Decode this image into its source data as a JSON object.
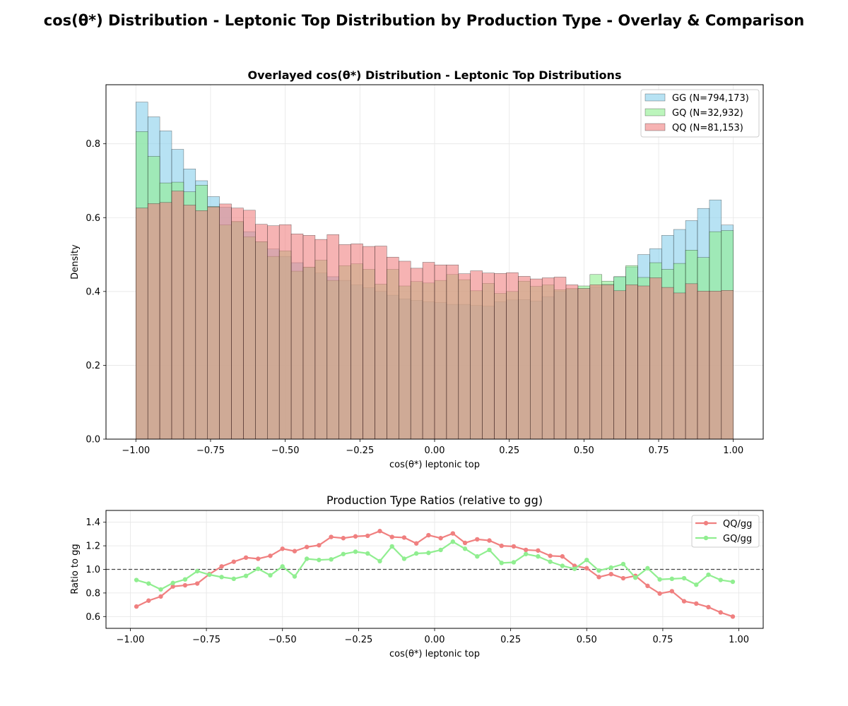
{
  "figure": {
    "suptitle": "cos(θ*) Distribution - Leptonic Top Distribution by Production Type - Overlay & Comparison"
  },
  "chart_data": [
    {
      "type": "histogram",
      "title": "Overlayed cos(θ*) Distribution - Leptonic Top Distributions",
      "xlabel": "cos(θ*) leptonic top",
      "ylabel": "Density",
      "xlim": [
        -1.1,
        1.1
      ],
      "ylim": [
        0,
        0.96
      ],
      "xticks": [
        -1.0,
        -0.75,
        -0.5,
        -0.25,
        0.0,
        0.25,
        0.5,
        0.75,
        1.0
      ],
      "xtick_labels": [
        "−1.00",
        "−0.75",
        "−0.50",
        "−0.25",
        "0.00",
        "0.25",
        "0.50",
        "0.75",
        "1.00"
      ],
      "yticks": [
        0.0,
        0.2,
        0.4,
        0.6,
        0.8
      ],
      "ytick_labels": [
        "0.0",
        "0.2",
        "0.4",
        "0.6",
        "0.8"
      ],
      "grid": true,
      "legend_position": "top-right",
      "bin_edges_range": [
        -1.0,
        1.0
      ],
      "n_bins": 50,
      "series": [
        {
          "name": "GG (N=794,173)",
          "color": "#87CEEB",
          "values": [
            0.913,
            0.873,
            0.835,
            0.785,
            0.732,
            0.7,
            0.657,
            0.628,
            0.588,
            0.562,
            0.535,
            0.515,
            0.495,
            0.478,
            0.465,
            0.45,
            0.44,
            0.43,
            0.418,
            0.41,
            0.4,
            0.39,
            0.38,
            0.376,
            0.372,
            0.37,
            0.365,
            0.365,
            0.362,
            0.36,
            0.372,
            0.377,
            0.378,
            0.374,
            0.386,
            0.4,
            0.406,
            0.408,
            0.412,
            0.42,
            0.44,
            0.466,
            0.5,
            0.516,
            0.552,
            0.568,
            0.592,
            0.625,
            0.648,
            0.58
          ]
        },
        {
          "name": "GQ (N=32,932)",
          "color": "#90EE90",
          "values": [
            0.833,
            0.766,
            0.694,
            0.696,
            0.67,
            0.688,
            0.63,
            0.58,
            0.59,
            0.548,
            0.535,
            0.495,
            0.51,
            0.455,
            0.466,
            0.485,
            0.43,
            0.47,
            0.475,
            0.46,
            0.42,
            0.46,
            0.415,
            0.427,
            0.423,
            0.43,
            0.446,
            0.432,
            0.402,
            0.422,
            0.395,
            0.4,
            0.428,
            0.414,
            0.418,
            0.405,
            0.408,
            0.415,
            0.446,
            0.428,
            0.44,
            0.47,
            0.438,
            0.478,
            0.46,
            0.476,
            0.512,
            0.492,
            0.562,
            0.565
          ]
        },
        {
          "name": "QQ (N=81,153)",
          "color": "#F08080",
          "values": [
            0.626,
            0.638,
            0.641,
            0.672,
            0.634,
            0.619,
            0.629,
            0.637,
            0.626,
            0.62,
            0.582,
            0.578,
            0.581,
            0.556,
            0.552,
            0.541,
            0.554,
            0.527,
            0.529,
            0.522,
            0.523,
            0.493,
            0.482,
            0.463,
            0.479,
            0.472,
            0.472,
            0.448,
            0.456,
            0.45,
            0.449,
            0.451,
            0.441,
            0.434,
            0.437,
            0.439,
            0.418,
            0.408,
            0.418,
            0.418,
            0.402,
            0.418,
            0.415,
            0.437,
            0.411,
            0.396,
            0.421,
            0.401,
            0.401,
            0.403
          ]
        }
      ]
    },
    {
      "type": "line",
      "title": "Production Type Ratios (relative to gg)",
      "xlabel": "cos(θ*) leptonic top",
      "ylabel": "Ratio to gg",
      "xlim": [
        -1.08,
        1.08
      ],
      "ylim": [
        0.5,
        1.5
      ],
      "xticks": [
        -1.0,
        -0.75,
        -0.5,
        -0.25,
        0.0,
        0.25,
        0.5,
        0.75,
        1.0
      ],
      "xtick_labels": [
        "−1.00",
        "−0.75",
        "−0.50",
        "−0.25",
        "0.00",
        "0.25",
        "0.50",
        "0.75",
        "1.00"
      ],
      "yticks": [
        0.6,
        0.8,
        1.0,
        1.2,
        1.4
      ],
      "ytick_labels": [
        "0.6",
        "0.8",
        "1.0",
        "1.2",
        "1.4"
      ],
      "reference_line": 1.0,
      "grid": true,
      "legend_position": "top-right",
      "x": [
        -0.98,
        -0.94,
        -0.9,
        -0.86,
        -0.82,
        -0.78,
        -0.74,
        -0.7,
        -0.66,
        -0.62,
        -0.58,
        -0.54,
        -0.5,
        -0.46,
        -0.42,
        -0.38,
        -0.34,
        -0.3,
        -0.26,
        -0.22,
        -0.18,
        -0.14,
        -0.1,
        -0.06,
        -0.02,
        0.02,
        0.06,
        0.1,
        0.14,
        0.18,
        0.22,
        0.26,
        0.3,
        0.34,
        0.38,
        0.42,
        0.46,
        0.5,
        0.54,
        0.58,
        0.62,
        0.66,
        0.7,
        0.74,
        0.78,
        0.82,
        0.86,
        0.9,
        0.94,
        0.98
      ],
      "series": [
        {
          "name": "QQ/gg",
          "color": "#F08080",
          "values": [
            0.685,
            0.735,
            0.77,
            0.855,
            0.865,
            0.88,
            0.96,
            1.025,
            1.065,
            1.1,
            1.09,
            1.115,
            1.175,
            1.155,
            1.19,
            1.205,
            1.275,
            1.265,
            1.28,
            1.285,
            1.325,
            1.275,
            1.27,
            1.22,
            1.29,
            1.265,
            1.305,
            1.225,
            1.255,
            1.245,
            1.2,
            1.195,
            1.165,
            1.16,
            1.115,
            1.11,
            1.03,
            1.01,
            0.935,
            0.96,
            0.925,
            0.945,
            0.86,
            0.795,
            0.815,
            0.73,
            0.71,
            0.68,
            0.635,
            0.6
          ]
        },
        {
          "name": "GQ/gg",
          "color": "#90EE90",
          "values": [
            0.91,
            0.88,
            0.83,
            0.885,
            0.915,
            0.985,
            0.955,
            0.935,
            0.92,
            0.945,
            1.005,
            0.95,
            1.025,
            0.94,
            1.09,
            1.08,
            1.085,
            1.13,
            1.15,
            1.135,
            1.07,
            1.195,
            1.09,
            1.135,
            1.14,
            1.165,
            1.235,
            1.175,
            1.11,
            1.165,
            1.055,
            1.06,
            1.13,
            1.11,
            1.065,
            1.03,
            1.005,
            1.08,
            0.99,
            1.015,
            1.045,
            0.93,
            1.01,
            0.915,
            0.92,
            0.925,
            0.87,
            0.955,
            0.91,
            0.895
          ]
        }
      ]
    }
  ]
}
